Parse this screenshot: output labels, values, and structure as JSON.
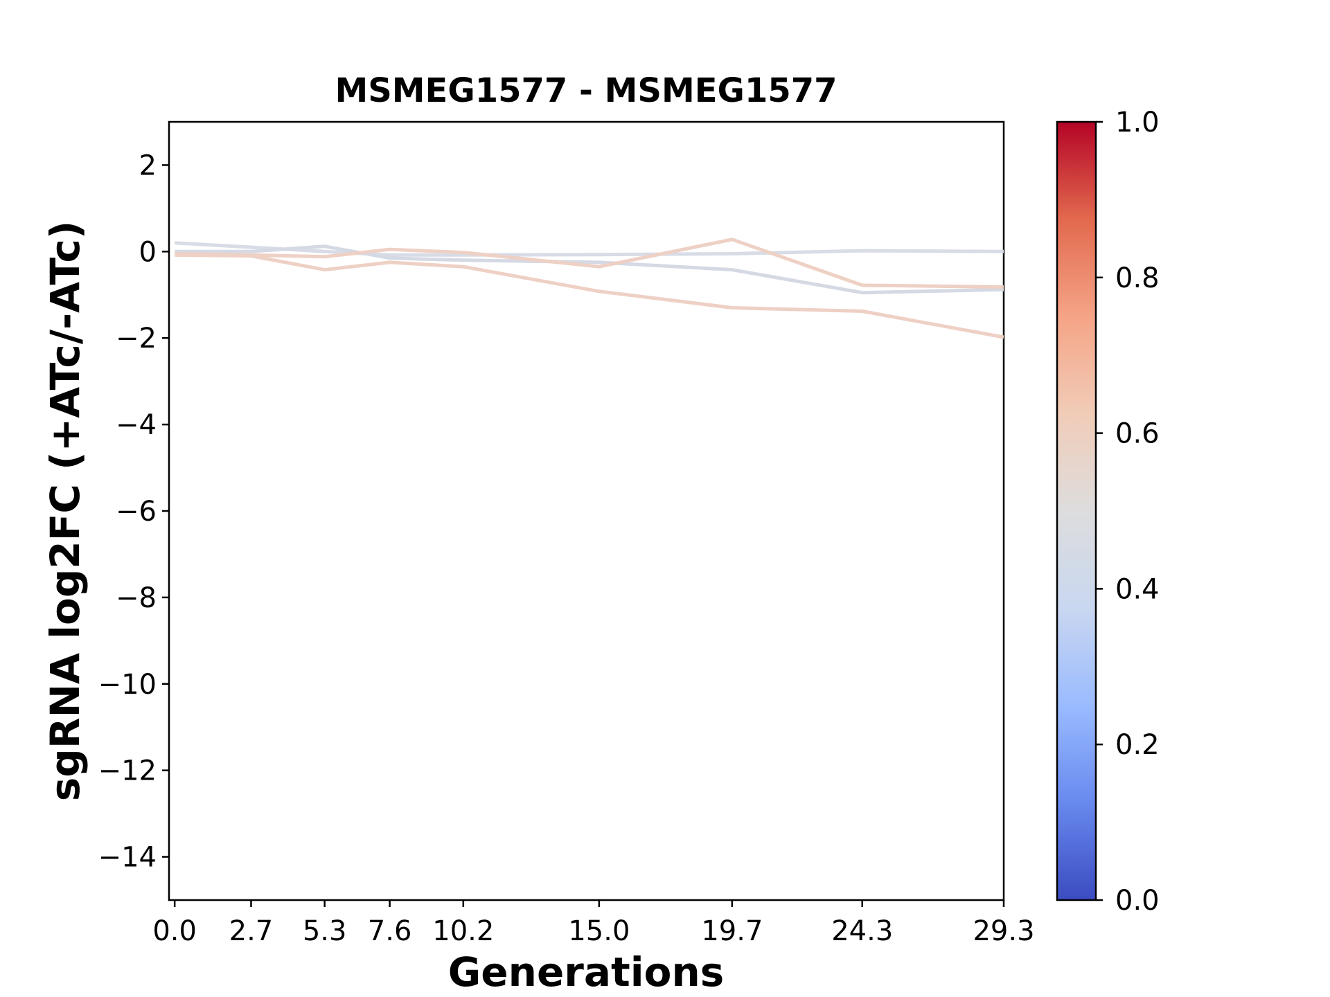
{
  "chart_data": {
    "type": "line",
    "title": "MSMEG1577 - MSMEG1577",
    "xlabel": "Generations",
    "ylabel": "sgRNA log2FC (+ATc/-ATc)",
    "x": [
      0.0,
      2.7,
      5.3,
      7.6,
      10.2,
      15.0,
      19.7,
      24.3,
      29.3
    ],
    "x_tick_labels": [
      "0.0",
      "2.7",
      "5.3",
      "7.6",
      "10.2",
      "15.0",
      "19.7",
      "24.3",
      "29.3"
    ],
    "y_ticks": [
      2,
      0,
      -2,
      -4,
      -6,
      -8,
      -10,
      -12,
      -14
    ],
    "y_tick_labels": [
      "2",
      "0",
      "−2",
      "−4",
      "−6",
      "−8",
      "−10",
      "−12",
      "−14"
    ],
    "xlim": [
      -0.2,
      29.3
    ],
    "ylim": [
      -15,
      3
    ],
    "grid": false,
    "series": [
      {
        "values": [
          0.2,
          0.1,
          -0.0,
          -0.08,
          -0.08,
          -0.07,
          -0.05,
          0.02,
          0.0
        ],
        "color": "#d7dce6"
      },
      {
        "values": [
          0.0,
          0.0,
          0.12,
          -0.15,
          -0.2,
          -0.25,
          -0.42,
          -0.95,
          -0.88
        ],
        "color": "#d5d9e4"
      },
      {
        "values": [
          -0.05,
          -0.08,
          -0.12,
          0.05,
          -0.02,
          -0.35,
          0.28,
          -0.78,
          -0.82
        ],
        "color": "#eed0c4"
      },
      {
        "values": [
          -0.08,
          -0.1,
          -0.42,
          -0.25,
          -0.35,
          -0.92,
          -1.3,
          -1.38,
          -1.98
        ],
        "color": "#eed0c4"
      }
    ],
    "colorbar": {
      "colormap": "coolwarm",
      "range": [
        0.0,
        1.0
      ],
      "ticks": [
        0.0,
        0.2,
        0.4,
        0.6,
        0.8,
        1.0
      ],
      "tick_labels": [
        "0.0",
        "0.2",
        "0.4",
        "0.6",
        "0.8",
        "1.0"
      ],
      "colors": [
        "#3b4cc0",
        "#6889ee",
        "#9abbff",
        "#c9d7f0",
        "#dddddd",
        "#f1ccb8",
        "#f5a486",
        "#e2694e",
        "#b40426"
      ]
    }
  }
}
